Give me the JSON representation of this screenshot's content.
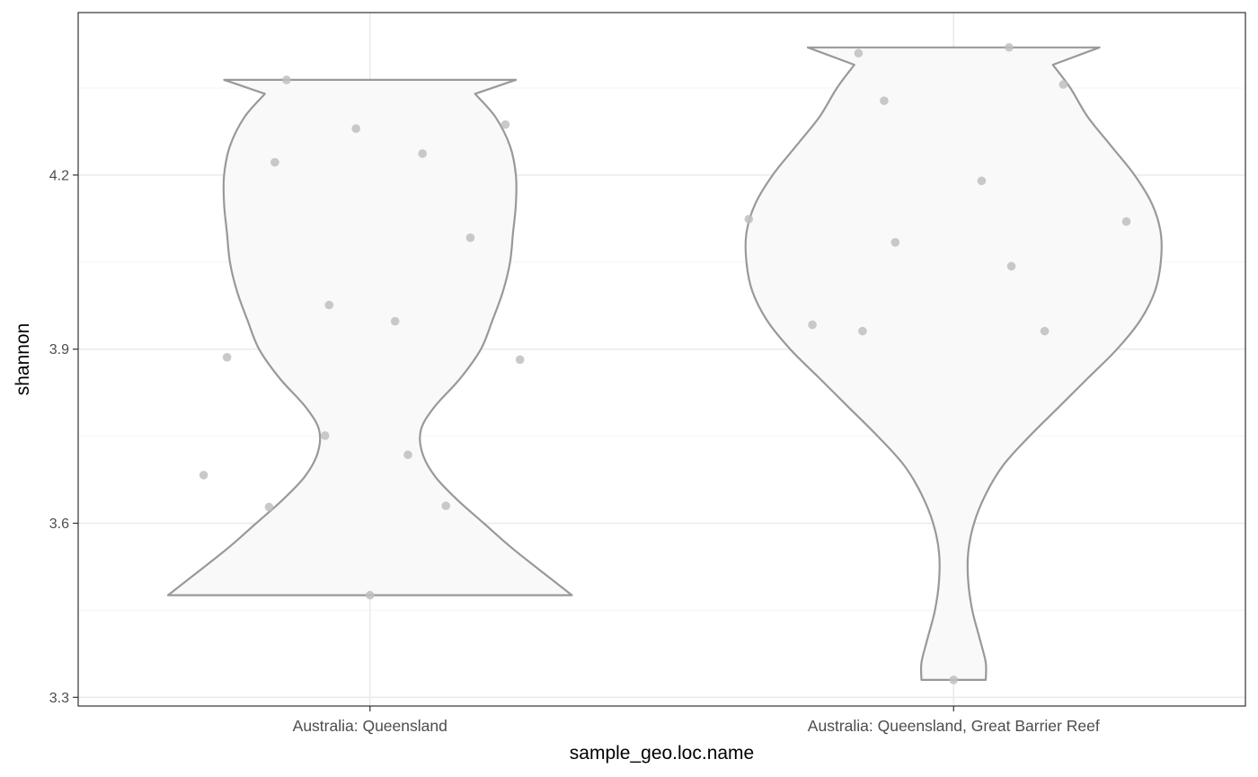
{
  "chart_data": {
    "type": "violin",
    "xlabel": "sample_geo.loc.name",
    "ylabel": "shannon",
    "ylim": [
      3.285,
      4.48
    ],
    "y_ticks": [
      3.3,
      3.6,
      3.9,
      4.2
    ],
    "y_tick_labels": [
      "3.3",
      "3.6",
      "3.9",
      "4.2"
    ],
    "y_minor_ticks": [
      3.45,
      3.75,
      4.05,
      4.35
    ],
    "grid": true,
    "theme": "bw",
    "colors": {
      "violin_fill": "#f9f9f9",
      "violin_stroke": "#999999",
      "point": "#bfbfbf",
      "grid_major": "#ebebeb",
      "grid_minor": "#f3f3f3",
      "panel_border": "#333333"
    },
    "categories": [
      "Australia: Queensland",
      "Australia: Queensland, Great Barrier Reef"
    ],
    "groups": [
      {
        "category": "Australia: Queensland",
        "min": 3.476,
        "max": 4.364,
        "density_profile": [
          [
            3.476,
            0.346
          ],
          [
            3.52,
            0.29
          ],
          [
            3.56,
            0.24
          ],
          [
            3.6,
            0.195
          ],
          [
            3.64,
            0.15
          ],
          [
            3.68,
            0.112
          ],
          [
            3.72,
            0.09
          ],
          [
            3.76,
            0.087
          ],
          [
            3.8,
            0.11
          ],
          [
            3.85,
            0.155
          ],
          [
            3.9,
            0.19
          ],
          [
            3.95,
            0.21
          ],
          [
            4.0,
            0.228
          ],
          [
            4.05,
            0.24
          ],
          [
            4.1,
            0.245
          ],
          [
            4.15,
            0.25
          ],
          [
            4.2,
            0.25
          ],
          [
            4.25,
            0.24
          ],
          [
            4.3,
            0.215
          ],
          [
            4.34,
            0.18
          ],
          [
            4.364,
            0.25
          ]
        ],
        "points": [
          {
            "jitter": -0.245,
            "y": 3.886
          },
          {
            "jitter": -0.143,
            "y": 4.364
          },
          {
            "jitter": -0.285,
            "y": 3.683
          },
          {
            "jitter": -0.163,
            "y": 4.222
          },
          {
            "jitter": -0.173,
            "y": 3.628
          },
          {
            "jitter": -0.07,
            "y": 3.976
          },
          {
            "jitter": -0.077,
            "y": 3.751
          },
          {
            "jitter": -0.024,
            "y": 4.28
          },
          {
            "jitter": 0.0,
            "y": 3.476
          },
          {
            "jitter": 0.043,
            "y": 3.948
          },
          {
            "jitter": 0.09,
            "y": 4.237
          },
          {
            "jitter": 0.065,
            "y": 3.718
          },
          {
            "jitter": 0.172,
            "y": 4.092
          },
          {
            "jitter": 0.232,
            "y": 4.287
          },
          {
            "jitter": 0.13,
            "y": 3.63
          },
          {
            "jitter": 0.257,
            "y": 3.882
          }
        ]
      },
      {
        "category": "Australia: Queensland, Great Barrier Reef",
        "min": 3.33,
        "max": 4.42,
        "density_profile": [
          [
            3.33,
            0.055
          ],
          [
            3.36,
            0.055
          ],
          [
            3.4,
            0.045
          ],
          [
            3.45,
            0.032
          ],
          [
            3.5,
            0.025
          ],
          [
            3.55,
            0.025
          ],
          [
            3.6,
            0.035
          ],
          [
            3.65,
            0.055
          ],
          [
            3.7,
            0.085
          ],
          [
            3.75,
            0.13
          ],
          [
            3.8,
            0.18
          ],
          [
            3.85,
            0.23
          ],
          [
            3.9,
            0.28
          ],
          [
            3.95,
            0.32
          ],
          [
            4.0,
            0.345
          ],
          [
            4.05,
            0.355
          ],
          [
            4.1,
            0.355
          ],
          [
            4.15,
            0.34
          ],
          [
            4.2,
            0.31
          ],
          [
            4.25,
            0.27
          ],
          [
            4.3,
            0.23
          ],
          [
            4.35,
            0.2
          ],
          [
            4.39,
            0.17
          ],
          [
            4.42,
            0.25
          ]
        ],
        "points": [
          {
            "jitter": -0.351,
            "y": 4.124
          },
          {
            "jitter": -0.242,
            "y": 3.942
          },
          {
            "jitter": -0.163,
            "y": 4.41
          },
          {
            "jitter": -0.156,
            "y": 3.931
          },
          {
            "jitter": -0.119,
            "y": 4.328
          },
          {
            "jitter": -0.1,
            "y": 4.084
          },
          {
            "jitter": 0.0,
            "y": 3.33
          },
          {
            "jitter": 0.048,
            "y": 4.19
          },
          {
            "jitter": 0.095,
            "y": 4.42
          },
          {
            "jitter": 0.099,
            "y": 4.043
          },
          {
            "jitter": 0.156,
            "y": 3.931
          },
          {
            "jitter": 0.188,
            "y": 4.356
          },
          {
            "jitter": 0.296,
            "y": 4.12
          }
        ]
      }
    ]
  }
}
